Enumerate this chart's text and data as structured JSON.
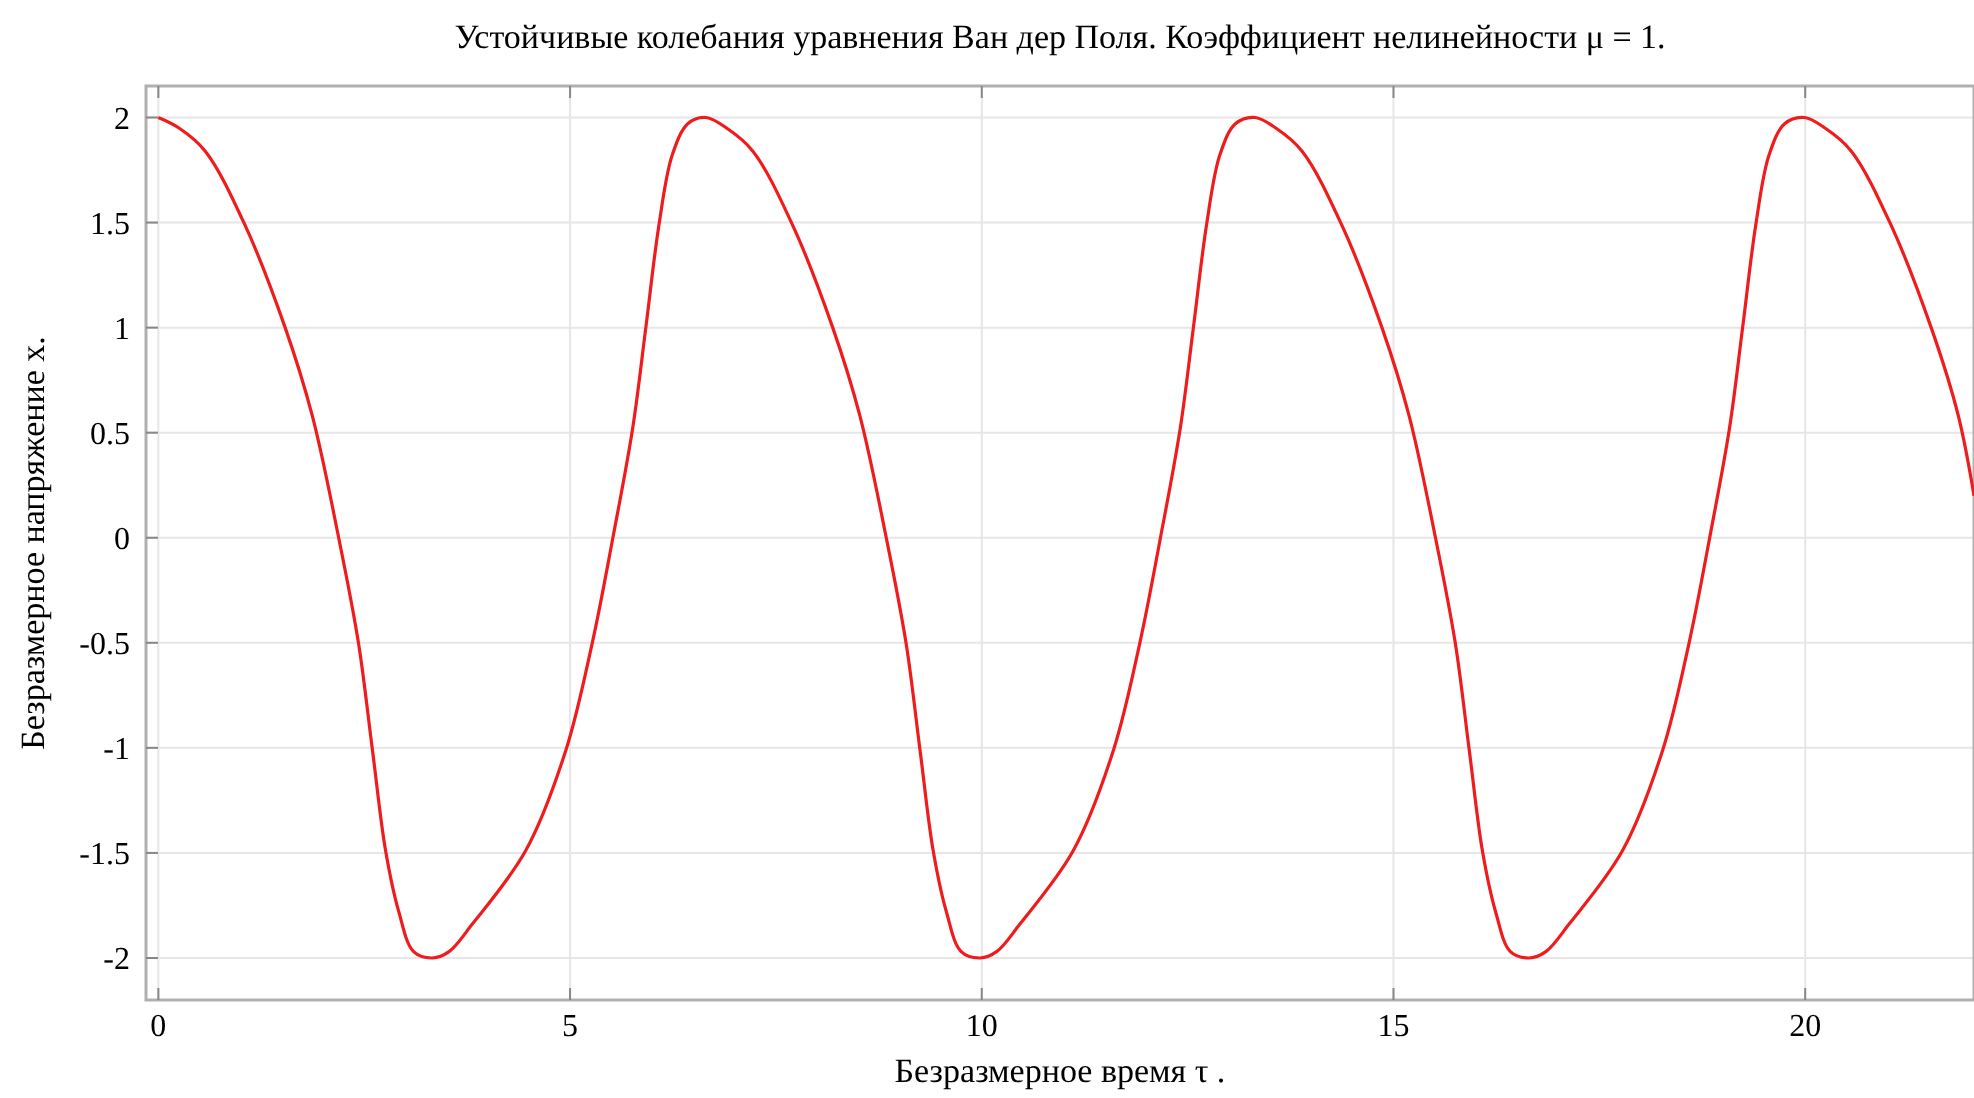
{
  "chart_data": {
    "type": "line",
    "title": "Устойчивые колебания уравнения Ван дер Поля. Коэффициент нелинейности μ = 1.",
    "xlabel": "Безразмерное время τ .",
    "ylabel": "Безразмерное напряжение x.",
    "x": [
      0,
      0.25,
      0.57,
      1.05,
      1.54,
      1.87,
      2.19,
      2.43,
      2.6,
      2.76,
      2.92,
      3.1,
      3.33,
      3.53,
      3.81,
      4.46,
      4.95,
      5.27,
      5.52,
      5.76,
      5.92,
      6.08,
      6.24,
      6.43,
      6.65,
      6.9,
      7.22,
      7.7,
      8.19,
      8.52,
      8.84,
      9.08,
      9.25,
      9.41,
      9.57,
      9.75,
      9.98,
      10.18,
      10.46,
      11.11,
      11.6,
      11.92,
      12.17,
      12.41,
      12.57,
      12.73,
      12.89,
      13.08,
      13.32,
      13.57,
      13.89,
      14.37,
      14.86,
      15.19,
      15.51,
      15.75,
      15.92,
      16.08,
      16.24,
      16.42,
      16.65,
      16.85,
      17.13,
      17.78,
      18.27,
      18.59,
      18.84,
      19.08,
      19.24,
      19.4,
      19.56,
      19.75,
      19.99,
      20.24,
      20.56,
      21.04,
      21.53,
      21.86,
      22.05
    ],
    "series": [
      {
        "color": "#ee1c1c",
        "values": [
          2,
          1.95,
          1.84,
          1.49,
          1.0,
          0.58,
          0,
          -0.5,
          -1.01,
          -1.49,
          -1.78,
          -1.97,
          -2,
          -1.97,
          -1.84,
          -1.49,
          -1.01,
          -0.5,
          0,
          0.52,
          1.0,
          1.49,
          1.82,
          1.97,
          2,
          1.95,
          1.84,
          1.49,
          1.0,
          0.58,
          0,
          -0.5,
          -1.01,
          -1.49,
          -1.78,
          -1.97,
          -2,
          -1.97,
          -1.84,
          -1.49,
          -1.01,
          -0.5,
          0,
          0.52,
          1.0,
          1.49,
          1.82,
          1.97,
          2,
          1.95,
          1.84,
          1.49,
          1.0,
          0.58,
          0,
          -0.5,
          -1.01,
          -1.49,
          -1.78,
          -1.97,
          -2,
          -1.97,
          -1.84,
          -1.49,
          -1.01,
          -0.5,
          0,
          0.52,
          1.0,
          1.49,
          1.82,
          1.97,
          2,
          1.95,
          1.84,
          1.49,
          1.0,
          0.58,
          0.2
        ]
      }
    ],
    "xlim": [
      -0.15,
      22.05
    ],
    "xticks": [
      0,
      5,
      10,
      15,
      20
    ],
    "ylim": [
      -2.2,
      2.15
    ],
    "yticks": [
      -2,
      -1.5,
      -1,
      -0.5,
      0,
      0.5,
      1,
      1.5,
      2
    ],
    "grid": true,
    "marker": "none",
    "line_style": "solid"
  }
}
